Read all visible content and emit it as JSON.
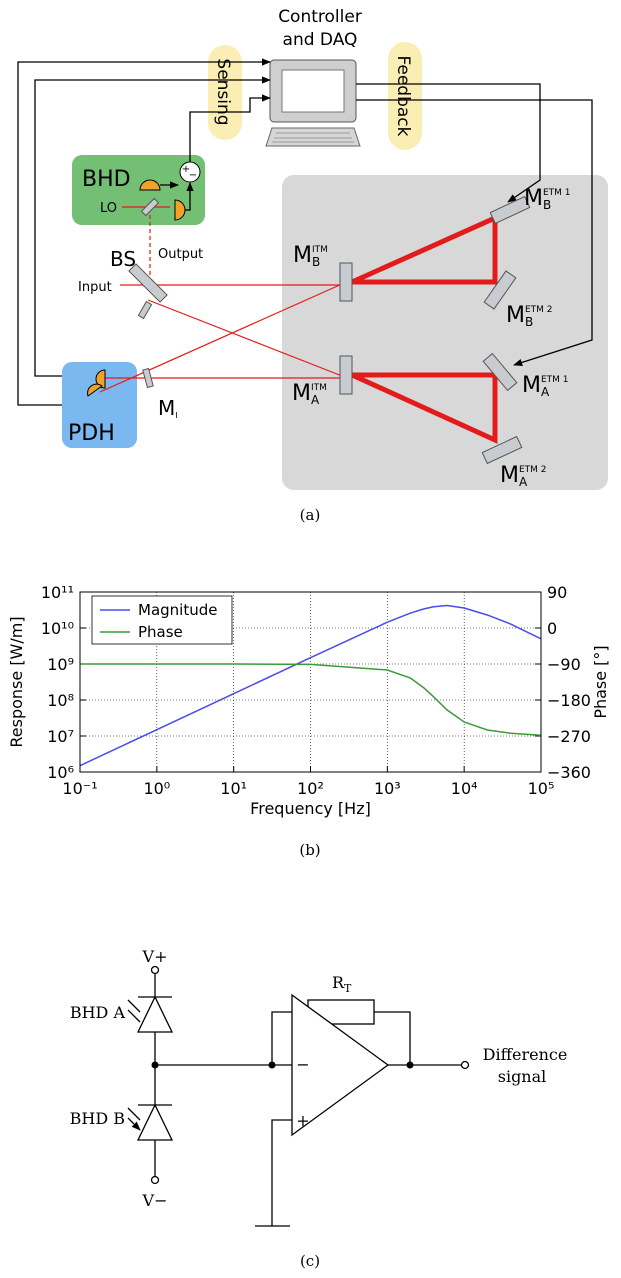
{
  "figure_a": {
    "controller": [
      "Controller",
      "and DAQ"
    ],
    "sensing": "Sensing",
    "feedback": "Feedback",
    "bhd": "BHD",
    "summer": {
      "plus": "+",
      "minus": "−"
    },
    "lo": "LO",
    "bs": "BS",
    "output": "Output",
    "input": "Input",
    "pdh": "PDH",
    "mirror_i": {
      "main": "M",
      "sub": "I"
    },
    "mirrors": [
      {
        "main": "M",
        "sub": "B",
        "sup": "ETM 1"
      },
      {
        "main": "M",
        "sub": "B",
        "sup": "ITM"
      },
      {
        "main": "M",
        "sub": "B",
        "sup": "ETM 2"
      },
      {
        "main": "M",
        "sub": "A",
        "sup": "ETM 1"
      },
      {
        "main": "M",
        "sub": "A",
        "sup": "ITM"
      },
      {
        "main": "M",
        "sub": "A",
        "sup": "ETM 2"
      }
    ],
    "caption": "(a)"
  },
  "chart_data": {
    "type": "line",
    "xlabel": "Frequency [Hz]",
    "ylabel": "Response [W/m]",
    "y2label": "Phase [°]",
    "x_scale": "log",
    "y_scale": "log",
    "grid": true,
    "legend": "upper left",
    "x": [
      0.1,
      1,
      10,
      100,
      1000,
      2000,
      3000,
      4000,
      6000,
      10000,
      20000,
      40000,
      100000
    ],
    "series": [
      {
        "name": "Magnitude",
        "color": "#4b4bea",
        "values": [
          1500000.0,
          15000000.0,
          150000000.0,
          1500000000.0,
          14500000000.0,
          26000000000.0,
          34000000000.0,
          39000000000.0,
          42000000000.0,
          36000000000.0,
          23000000000.0,
          13000000000.0,
          5000000000.0
        ]
      },
      {
        "name": "Phase",
        "color": "#3c9a3c",
        "axis": "y2",
        "values": [
          -90,
          -90,
          -90,
          -91,
          -105,
          -125,
          -150,
          -172,
          -205,
          -235,
          -255,
          -263,
          -268
        ]
      }
    ],
    "xlim": [
      0.1,
      100000
    ],
    "ylim": [
      1000000.0,
      100000000000.0
    ],
    "y2lim": [
      -360,
      90
    ],
    "xticks": [
      {
        "value": 0.1,
        "label": "10⁻¹"
      },
      {
        "value": 1,
        "label": "10⁰"
      },
      {
        "value": 10,
        "label": "10¹"
      },
      {
        "value": 100,
        "label": "10²"
      },
      {
        "value": 1000,
        "label": "10³"
      },
      {
        "value": 10000,
        "label": "10⁴"
      },
      {
        "value": 100000,
        "label": "10⁵"
      }
    ],
    "yticks": [
      {
        "value": 1000000.0,
        "label": "10⁶"
      },
      {
        "value": 10000000.0,
        "label": "10⁷"
      },
      {
        "value": 100000000.0,
        "label": "10⁸"
      },
      {
        "value": 1000000000.0,
        "label": "10⁹"
      },
      {
        "value": 10000000000.0,
        "label": "10¹⁰"
      },
      {
        "value": 100000000000.0,
        "label": "10¹¹"
      }
    ],
    "y2ticks": [
      {
        "value": -360,
        "label": "−360"
      },
      {
        "value": -270,
        "label": "−270"
      },
      {
        "value": -180,
        "label": "−180"
      },
      {
        "value": -90,
        "label": "−90"
      },
      0,
      90
    ],
    "caption": "(b)"
  },
  "circuit_c": {
    "vplus": "V+",
    "vminus": "V−",
    "bhd_a": "BHD A",
    "bhd_b": "BHD B",
    "resistor": {
      "main": "R",
      "sub": "T"
    },
    "minus": "−",
    "plus": "+",
    "output": [
      "Difference",
      "signal"
    ],
    "caption": "(c)"
  }
}
